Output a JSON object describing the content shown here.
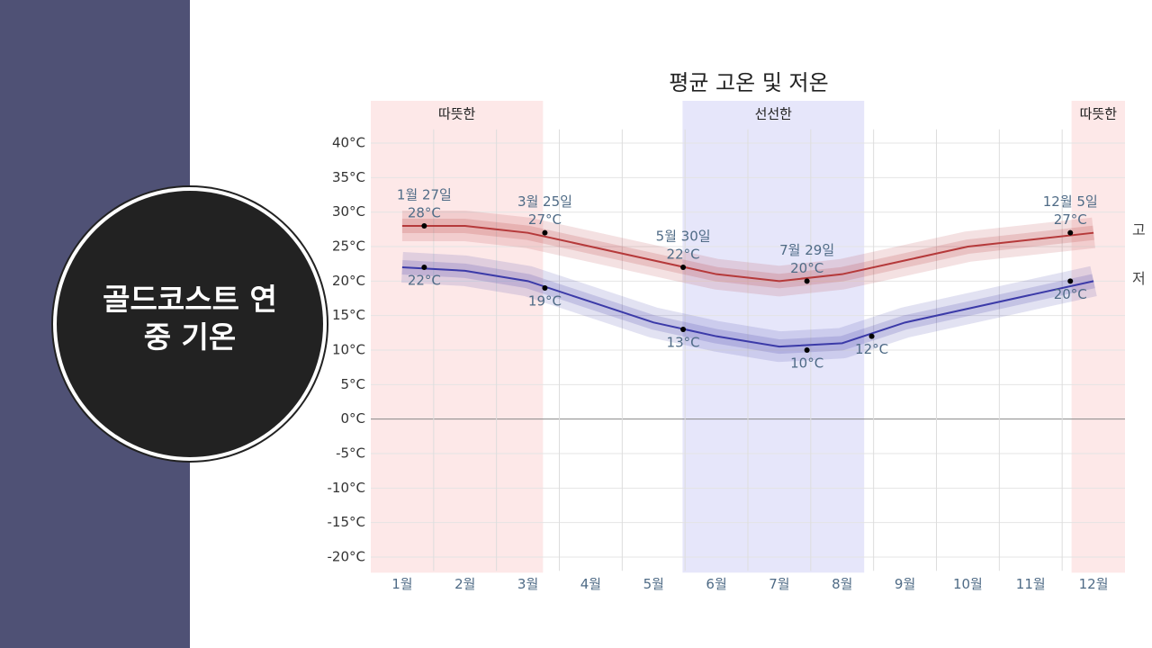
{
  "slide": {
    "title": "골드코스트 연중 기온"
  },
  "chart_data": {
    "type": "line",
    "title": "평균 고온 및 저온",
    "categories": [
      "1월",
      "2월",
      "3월",
      "4월",
      "5월",
      "6월",
      "7월",
      "8월",
      "9월",
      "10월",
      "11월",
      "12월"
    ],
    "series": [
      {
        "name": "고",
        "color": "#b5393a",
        "values": [
          28,
          28,
          27,
          25,
          23,
          21,
          20,
          21,
          23,
          25,
          26,
          27
        ]
      },
      {
        "name": "저",
        "color": "#3b3aa8",
        "values": [
          22,
          21.5,
          20,
          17,
          14,
          12,
          10.5,
          11,
          14,
          16,
          18,
          20
        ]
      }
    ],
    "ylim": [
      -22,
      42
    ],
    "yticks": [
      {
        "value": -20,
        "label": "-20°C"
      },
      {
        "value": -15,
        "label": "-15°C"
      },
      {
        "value": -10,
        "label": "-10°C"
      },
      {
        "value": -5,
        "label": "-5°C"
      },
      {
        "value": 0,
        "label": "0°C"
      },
      {
        "value": 5,
        "label": "5°C"
      },
      {
        "value": 10,
        "label": "10°C"
      },
      {
        "value": 15,
        "label": "15°C"
      },
      {
        "value": 20,
        "label": "20°C"
      },
      {
        "value": 25,
        "label": "25°C"
      },
      {
        "value": 30,
        "label": "30°C"
      },
      {
        "value": 35,
        "label": "35°C"
      },
      {
        "value": 40,
        "label": "40°C"
      }
    ],
    "grid": true,
    "seasons": [
      {
        "label": "따뜻한",
        "start": -0.5,
        "end": 2.24,
        "color": "#fde8e8"
      },
      {
        "label": "선선한",
        "start": 4.46,
        "end": 7.35,
        "color": "#e6e6fa"
      },
      {
        "label": "따뜻한",
        "start": 10.65,
        "end": 11.5,
        "color": "#fde8e8"
      }
    ],
    "annotations": [
      {
        "series": 0,
        "x": 0.35,
        "value": 28,
        "value_label": "28°C",
        "label": "1월 27일"
      },
      {
        "series": 0,
        "x": 2.27,
        "value": 27,
        "value_label": "27°C",
        "label": "3월 25일"
      },
      {
        "series": 0,
        "x": 4.47,
        "value": 22,
        "value_label": "22°C",
        "label": "5월 30일"
      },
      {
        "series": 0,
        "x": 6.44,
        "value": 20,
        "value_label": "20°C",
        "label": "7월 29일"
      },
      {
        "series": 0,
        "x": 10.63,
        "value": 27,
        "value_label": "27°C",
        "label": "12월 5일"
      },
      {
        "series": 1,
        "x": 0.35,
        "value": 22,
        "value_label": "22°C"
      },
      {
        "series": 1,
        "x": 2.27,
        "value": 19,
        "value_label": "19°C"
      },
      {
        "series": 1,
        "x": 4.47,
        "value": 13,
        "value_label": "13°C"
      },
      {
        "series": 1,
        "x": 6.44,
        "value": 10,
        "value_label": "10°C"
      },
      {
        "series": 1,
        "x": 7.47,
        "value": 12,
        "value_label": "12°C"
      },
      {
        "series": 1,
        "x": 10.63,
        "value": 20,
        "value_label": "20°C"
      }
    ]
  }
}
